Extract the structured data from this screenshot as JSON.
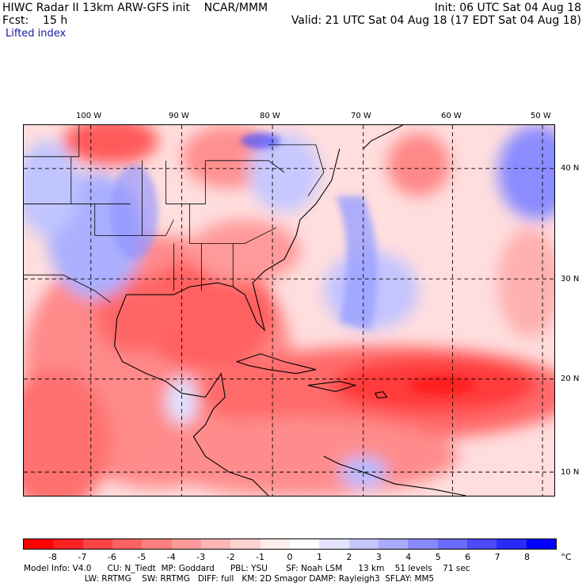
{
  "header": {
    "title_left": "HIWC Radar II 13km ARW-GFS init    NCAR/MMM",
    "fcst_line": "Fcst:    15 h",
    "init_line": "Init: 06 UTC Sat 04 Aug 18",
    "valid_line": "Valid: 21 UTC Sat 04 Aug 18 (17 EDT Sat 04 Aug 18)",
    "field_name": "Lifted index"
  },
  "axes": {
    "lon_labels": [
      "100 W",
      "90 W",
      "80 W",
      "70 W",
      "60 W",
      "50 W"
    ],
    "lat_labels": [
      "40 N",
      "30 N",
      "20 N",
      "10 N"
    ]
  },
  "colorbar": {
    "unit": "°C",
    "tick_labels": [
      "-8",
      "-7",
      "-6",
      "-5",
      "-4",
      "-3",
      "-2",
      "-1",
      "0",
      "1",
      "2",
      "3",
      "4",
      "5",
      "6",
      "7",
      "8"
    ],
    "colors": [
      "#ff0000",
      "#ff2222",
      "#ff4444",
      "#ff6262",
      "#ff7e7e",
      "#ff9a9a",
      "#ffb6b6",
      "#ffd2d2",
      "#ffeeee",
      "#ffffff",
      "#e2e2ff",
      "#c6c6ff",
      "#aaaaff",
      "#8a8aff",
      "#6a6aff",
      "#4a4aff",
      "#2a2aff",
      "#0000ff"
    ]
  },
  "footer": {
    "line1": "Model Info: V4.0      CU: N_Tiedt  MP: Goddard      PBL: YSU       SF: Noah LSM      13 km    51 levels    71 sec",
    "line2": "                       LW: RRTMG    SW: RRTMG   DIFF: full   KM: 2D Smagor DAMP: Rayleigh3  SFLAY: MM5"
  }
}
